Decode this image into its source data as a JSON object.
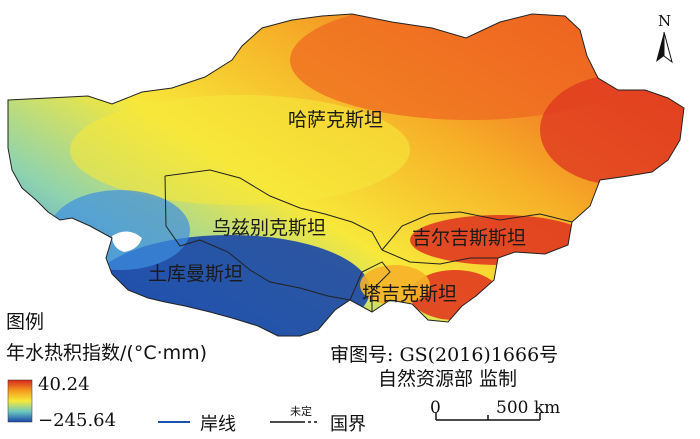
{
  "map": {
    "countries": [
      {
        "name": "哈萨克斯坦"
      },
      {
        "name": "乌兹别克斯坦"
      },
      {
        "name": "吉尔吉斯斯坦"
      },
      {
        "name": "土库曼斯坦"
      },
      {
        "name": "塔吉克斯坦"
      }
    ],
    "north_arrow_label": "N",
    "colors": {
      "high": "#e03a20",
      "mid_high": "#f28a1a",
      "mid": "#f7e83a",
      "mid_low": "#8fd3ae",
      "low": "#2a6fd0",
      "lowest": "#1846a8"
    }
  },
  "legend": {
    "title": "图例",
    "index_label": "年水热积指数/(°C·mm)",
    "max_value": "40.24",
    "min_value": "−245.64",
    "coastline_label": "岸线",
    "undetermined_label": "未定",
    "border_label": "国界"
  },
  "approval": {
    "map_number": "审图号: GS(2016)1666号",
    "supervisor": "自然资源部 监制"
  },
  "scale": {
    "start": "0",
    "end": "500 km"
  }
}
